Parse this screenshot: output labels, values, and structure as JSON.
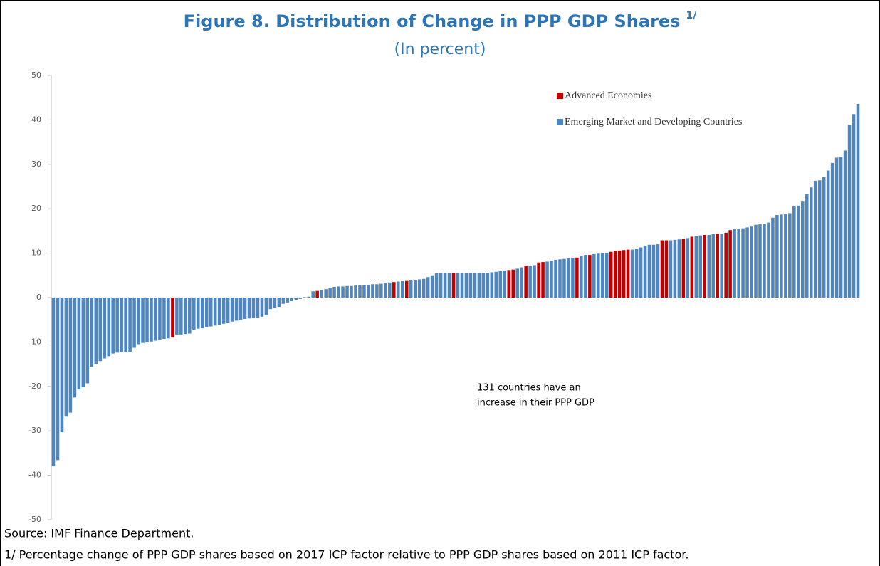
{
  "chart_data": {
    "type": "bar",
    "title": "Figure 8. Distribution of Change in PPP GDP Shares",
    "title_note": "1/",
    "subtitle": "(In percent)",
    "annotation": [
      "131 countries have an",
      "increase in their PPP GDP"
    ],
    "source": "Source: IMF Finance Department.",
    "footnote": "1/ Percentage change of PPP GDP shares based on 2017 ICP factor relative to PPP GDP shares based on 2011 ICP factor.",
    "ylim": [
      -50,
      50
    ],
    "yticks": [
      -50,
      -40,
      -30,
      -20,
      -10,
      0,
      10,
      20,
      30,
      40,
      50
    ],
    "grid": false,
    "legend": "top-right",
    "categories": [
      null,
      null,
      null,
      null,
      null,
      null,
      null,
      null,
      null,
      null,
      null,
      null,
      null,
      null,
      null,
      null,
      null,
      null,
      null,
      null,
      null,
      null,
      null,
      null,
      null,
      null,
      null,
      null,
      null,
      null,
      null,
      null,
      null,
      null,
      null,
      null,
      null,
      null,
      null,
      null,
      null,
      null,
      null,
      null,
      null,
      null,
      null,
      null,
      null,
      null,
      null,
      null,
      null,
      null,
      null,
      null,
      null,
      null,
      null,
      null,
      null,
      null,
      null,
      null,
      null,
      null,
      null,
      null,
      null,
      null,
      null,
      null,
      null,
      null,
      null,
      null,
      null,
      null,
      null,
      null,
      null,
      null,
      null,
      null,
      null,
      null,
      null,
      null,
      null,
      null,
      null,
      null,
      null,
      null,
      null,
      null,
      null,
      null,
      null,
      null,
      null,
      null,
      null,
      null,
      null,
      null,
      null,
      null,
      null,
      null,
      null,
      null,
      null,
      null,
      null,
      null,
      null,
      null,
      null,
      null,
      null,
      null,
      null,
      null,
      null,
      null,
      null,
      null,
      null,
      null,
      null,
      null,
      null,
      null,
      null,
      null,
      null,
      null,
      null,
      null,
      null,
      null,
      null,
      null,
      null,
      null,
      null,
      null,
      null,
      null,
      null,
      null,
      null,
      null,
      null,
      null,
      null,
      null,
      null,
      null,
      null,
      null,
      null,
      null,
      null,
      null,
      null,
      null,
      null,
      null,
      null,
      null,
      null,
      null,
      null,
      null,
      null,
      null,
      null,
      null,
      null,
      null,
      null,
      null,
      null,
      null,
      null,
      null,
      null,
      null
    ],
    "series": [
      {
        "name": "Advanced Economies",
        "color": "#c00000",
        "values": [
          null,
          null,
          null,
          null,
          null,
          null,
          null,
          null,
          null,
          null,
          null,
          null,
          null,
          null,
          null,
          null,
          null,
          null,
          null,
          null,
          null,
          null,
          null,
          null,
          null,
          null,
          null,
          null,
          -9.0,
          null,
          null,
          null,
          null,
          null,
          null,
          null,
          null,
          null,
          null,
          null,
          null,
          null,
          null,
          null,
          null,
          null,
          null,
          null,
          null,
          null,
          null,
          null,
          null,
          null,
          null,
          null,
          null,
          null,
          null,
          null,
          null,
          null,
          1.5,
          null,
          null,
          null,
          null,
          null,
          null,
          null,
          null,
          null,
          null,
          null,
          null,
          null,
          null,
          null,
          null,
          null,
          3.5,
          null,
          null,
          3.9,
          null,
          null,
          null,
          null,
          null,
          null,
          null,
          null,
          null,
          null,
          5.5,
          null,
          null,
          null,
          null,
          null,
          null,
          null,
          null,
          null,
          null,
          null,
          null,
          6.2,
          6.3,
          null,
          null,
          7.2,
          null,
          null,
          7.9,
          8.0,
          null,
          null,
          null,
          null,
          null,
          null,
          null,
          9.0,
          null,
          null,
          9.6,
          null,
          null,
          null,
          null,
          10.3,
          10.5,
          10.6,
          10.7,
          10.8,
          null,
          null,
          null,
          null,
          null,
          null,
          null,
          12.9,
          12.9,
          null,
          null,
          null,
          13.2,
          null,
          13.7,
          null,
          null,
          14.1,
          null,
          null,
          14.4,
          null,
          14.6,
          15.2,
          null,
          null,
          null,
          null,
          null,
          null,
          null,
          null,
          null,
          null,
          null,
          null,
          null,
          null,
          null,
          null,
          null,
          null,
          null,
          null,
          null,
          null,
          null,
          null,
          null,
          null,
          null,
          null,
          null,
          null
        ]
      },
      {
        "name": "Emerging Market and Developing Countries",
        "color": "#4f86bf",
        "values": [
          -38.0,
          -36.6,
          -30.3,
          -26.8,
          -25.9,
          -22.5,
          -20.7,
          -20.2,
          -19.3,
          -15.6,
          -14.9,
          -14.3,
          -13.7,
          -13.2,
          -12.6,
          -12.4,
          -12.3,
          -12.3,
          -12.2,
          -11.3,
          -10.5,
          -10.2,
          -10.1,
          -9.9,
          -9.7,
          -9.5,
          -9.3,
          -9.2,
          null,
          -8.4,
          -8.3,
          -8.2,
          -8.1,
          -7.2,
          -7.0,
          -6.9,
          -6.7,
          -6.5,
          -6.3,
          -6.1,
          -5.9,
          -5.6,
          -5.4,
          -5.2,
          -5.0,
          -4.8,
          -4.7,
          -4.6,
          -4.5,
          -4.3,
          -4.0,
          -2.6,
          -2.4,
          -2.1,
          -1.4,
          -1.1,
          -0.8,
          -0.5,
          -0.3,
          0.1,
          0.2,
          1.4,
          null,
          1.6,
          1.9,
          2.2,
          2.4,
          2.5,
          2.5,
          2.6,
          2.6,
          2.7,
          2.8,
          2.8,
          2.9,
          3.0,
          3.0,
          3.1,
          3.2,
          3.4,
          null,
          3.6,
          3.8,
          null,
          4.0,
          4.0,
          4.1,
          4.2,
          4.6,
          5.0,
          5.5,
          5.5,
          5.5,
          5.5,
          null,
          5.5,
          5.5,
          5.5,
          5.5,
          5.5,
          5.5,
          5.5,
          5.6,
          5.7,
          5.8,
          6.0,
          6.1,
          null,
          null,
          6.5,
          6.8,
          null,
          7.2,
          7.3,
          null,
          null,
          8.1,
          8.3,
          8.5,
          8.6,
          8.7,
          8.8,
          8.9,
          null,
          9.4,
          9.6,
          null,
          9.8,
          9.9,
          10.0,
          10.1,
          null,
          null,
          null,
          null,
          null,
          10.8,
          10.9,
          11.3,
          11.7,
          11.9,
          11.9,
          12.0,
          null,
          null,
          12.9,
          13.0,
          13.1,
          null,
          13.4,
          null,
          13.8,
          14.0,
          null,
          14.1,
          14.3,
          null,
          14.4,
          null,
          null,
          15.4,
          15.5,
          15.6,
          15.8,
          16.0,
          16.4,
          16.5,
          16.6,
          16.9,
          18.0,
          18.6,
          18.7,
          18.8,
          19.0,
          20.5,
          20.7,
          21.6,
          23.3,
          24.8,
          26.3,
          26.4,
          27.1,
          28.6,
          30.3,
          31.5,
          31.7,
          33.1,
          38.9,
          41.3,
          43.6
        ]
      }
    ]
  }
}
